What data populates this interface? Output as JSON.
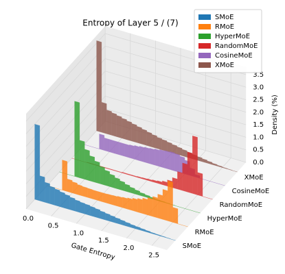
{
  "chart_data": {
    "type": "histogram3d",
    "title": "Entropy of Layer 5 / (7)",
    "x_label": "Gate Entropy",
    "z_label": "Density (%)",
    "bins": [
      0,
      0.1,
      0.2,
      0.3,
      0.4,
      0.5,
      0.6,
      0.7,
      0.8,
      0.9,
      1.0,
      1.1,
      1.2,
      1.3,
      1.4,
      1.5,
      1.6,
      1.7,
      1.8,
      1.9,
      2.0,
      2.1,
      2.2,
      2.3,
      2.4,
      2.5,
      2.6,
      2.7,
      2.8
    ],
    "xlim": [
      0,
      2.8
    ],
    "xticks": [
      {
        "value": 0,
        "label": "0.0"
      },
      {
        "value": 0.5,
        "label": "0.5"
      },
      {
        "value": 1,
        "label": "1.0"
      },
      {
        "value": 1.5,
        "label": "1.5"
      },
      {
        "value": 2,
        "label": "2.0"
      },
      {
        "value": 2.5,
        "label": "2.5"
      }
    ],
    "zlim": [
      0,
      3.8
    ],
    "zticks": [
      {
        "value": 0,
        "label": "0.0"
      },
      {
        "value": 0.5,
        "label": "0.5"
      },
      {
        "value": 1,
        "label": "1.0"
      },
      {
        "value": 1.5,
        "label": "1.5"
      },
      {
        "value": 2,
        "label": "2.0"
      },
      {
        "value": 2.5,
        "label": "2.5"
      },
      {
        "value": 3,
        "label": "3.0"
      },
      {
        "value": 3.5,
        "label": "3.5"
      }
    ],
    "grid": true,
    "legend": "upper right",
    "series": [
      {
        "name": "SMoE",
        "color": "#1f77b4",
        "values": [
          3.0,
          1.0,
          0.8,
          0.7,
          0.65,
          0.6,
          0.55,
          0.5,
          0.45,
          0.42,
          0.4,
          0.37,
          0.34,
          0.3,
          0.27,
          0.24,
          0.21,
          0.18,
          0.15,
          0.12,
          0.1,
          0.08,
          0.06,
          0.04,
          0.03,
          0.02,
          0.01,
          0
        ]
      },
      {
        "name": "RMoE",
        "color": "#ff7f0e",
        "values": [
          0,
          0,
          0,
          1.2,
          0.5,
          0.45,
          0.4,
          0.38,
          0.37,
          0.36,
          0.36,
          0.36,
          0.37,
          0.38,
          0.4,
          0.42,
          0.45,
          0.5,
          0.55,
          0.62,
          0.7,
          0.8,
          0.95,
          1.2,
          1.6,
          0.6,
          0,
          0
        ]
      },
      {
        "name": "HyperMoE",
        "color": "#2ca02c",
        "values": [
          0,
          0,
          0,
          3.0,
          1.5,
          1.2,
          1.0,
          0.85,
          0.7,
          0.6,
          0.5,
          0.42,
          0.35,
          0.28,
          0.22,
          0.17,
          0.12,
          0.09,
          0.06,
          0.04,
          0.03,
          0.02,
          0.01,
          0,
          0,
          0,
          0,
          0
        ]
      },
      {
        "name": "RandomMoE",
        "color": "#d62728",
        "values": [
          0,
          0,
          0,
          0.02,
          0.02,
          0.02,
          0.02,
          0.02,
          0.02,
          0.02,
          0.03,
          0.03,
          0.03,
          0.04,
          0.05,
          0.06,
          0.08,
          0.1,
          0.15,
          0.25,
          0.4,
          0.7,
          1.1,
          1.6,
          2.3,
          0.9,
          0,
          0
        ]
      },
      {
        "name": "CosineMoE",
        "color": "#9467bd",
        "values": [
          0,
          0,
          0,
          0.6,
          0.5,
          0.5,
          0.5,
          0.5,
          0.5,
          0.52,
          0.55,
          0.58,
          0.6,
          0.62,
          0.65,
          0.68,
          0.7,
          0.72,
          0.7,
          0.65,
          0.55,
          0.3,
          0.1,
          0,
          0,
          0,
          0,
          0
        ]
      },
      {
        "name": "XMoE",
        "color": "#8c564b",
        "values": [
          3.6,
          1.2,
          0.95,
          0.9,
          0.85,
          0.8,
          0.75,
          0.7,
          0.65,
          0.6,
          0.55,
          0.5,
          0.45,
          0.42,
          0.38,
          0.34,
          0.3,
          0.26,
          0.22,
          0.18,
          0.15,
          0.12,
          0.09,
          0.06,
          0.04,
          0.02,
          0.01,
          0
        ]
      }
    ]
  }
}
